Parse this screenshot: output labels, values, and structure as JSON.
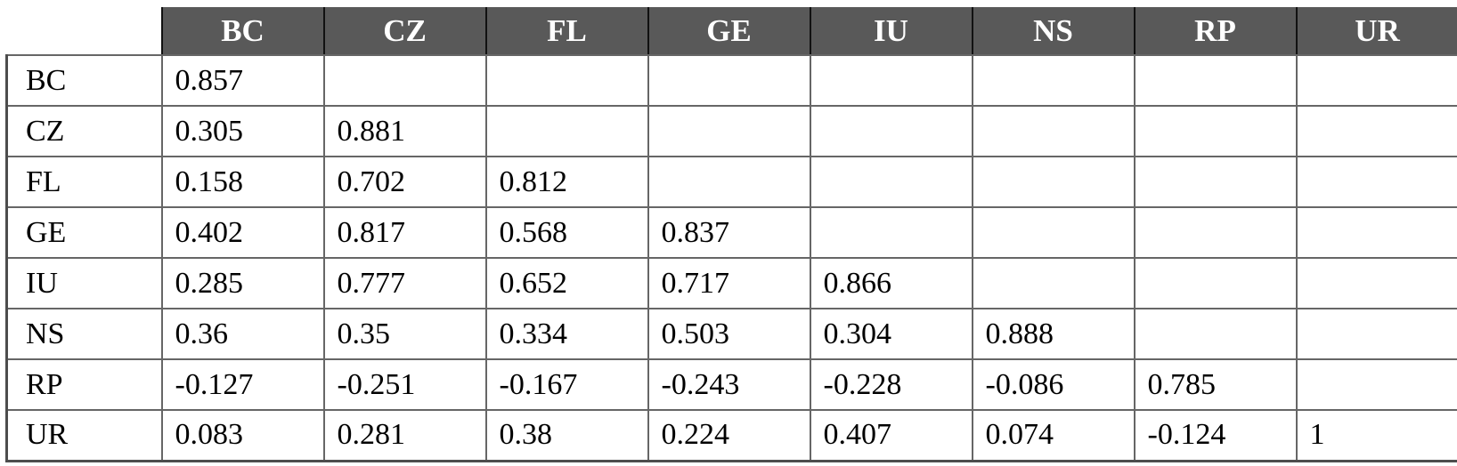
{
  "table": {
    "title": "correlation-matrix",
    "corner_label": "",
    "columns": [
      "BC",
      "CZ",
      "FL",
      "GE",
      "IU",
      "NS",
      "RP",
      "UR"
    ],
    "rows": [
      {
        "label": "BC",
        "values": [
          "0.857",
          "",
          "",
          "",
          "",
          "",
          "",
          ""
        ]
      },
      {
        "label": "CZ",
        "values": [
          "0.305",
          "0.881",
          "",
          "",
          "",
          "",
          "",
          ""
        ]
      },
      {
        "label": "FL",
        "values": [
          "0.158",
          "0.702",
          "0.812",
          "",
          "",
          "",
          "",
          ""
        ]
      },
      {
        "label": "GE",
        "values": [
          "0.402",
          "0.817",
          "0.568",
          "0.837",
          "",
          "",
          "",
          ""
        ]
      },
      {
        "label": "IU",
        "values": [
          "0.285",
          "0.777",
          "0.652",
          "0.717",
          "0.866",
          "",
          "",
          ""
        ]
      },
      {
        "label": "NS",
        "values": [
          "0.36",
          "0.35",
          "0.334",
          "0.503",
          "0.304",
          "0.888",
          "",
          ""
        ]
      },
      {
        "label": "RP",
        "values": [
          "-0.127",
          "-0.251",
          "-0.167",
          "-0.243",
          "-0.228",
          "-0.086",
          "0.785",
          ""
        ]
      },
      {
        "label": "UR",
        "values": [
          "0.083",
          "0.281",
          "0.38",
          "0.224",
          "0.407",
          "0.074",
          "-0.124",
          "1"
        ]
      }
    ]
  },
  "chart_data": {
    "type": "table",
    "title": "",
    "columns": [
      "",
      "BC",
      "CZ",
      "FL",
      "GE",
      "IU",
      "NS",
      "RP",
      "UR"
    ],
    "rows": [
      [
        "BC",
        0.857,
        null,
        null,
        null,
        null,
        null,
        null,
        null
      ],
      [
        "CZ",
        0.305,
        0.881,
        null,
        null,
        null,
        null,
        null,
        null
      ],
      [
        "FL",
        0.158,
        0.702,
        0.812,
        null,
        null,
        null,
        null,
        null
      ],
      [
        "GE",
        0.402,
        0.817,
        0.568,
        0.837,
        null,
        null,
        null,
        null
      ],
      [
        "IU",
        0.285,
        0.777,
        0.652,
        0.717,
        0.866,
        null,
        null,
        null
      ],
      [
        "NS",
        0.36,
        0.35,
        0.334,
        0.503,
        0.304,
        0.888,
        null,
        null
      ],
      [
        "RP",
        -0.127,
        -0.251,
        -0.167,
        -0.243,
        -0.228,
        -0.086,
        0.785,
        null
      ],
      [
        "UR",
        0.083,
        0.281,
        0.38,
        0.224,
        0.407,
        0.074,
        -0.124,
        1
      ]
    ]
  },
  "colors": {
    "header_bg": "#595959",
    "header_text": "#ffffff",
    "body_bg": "#ffffff",
    "border_inner": "#666666",
    "border_outer": "#4d4d4d",
    "header_divider": "#111111",
    "text": "#000000"
  }
}
